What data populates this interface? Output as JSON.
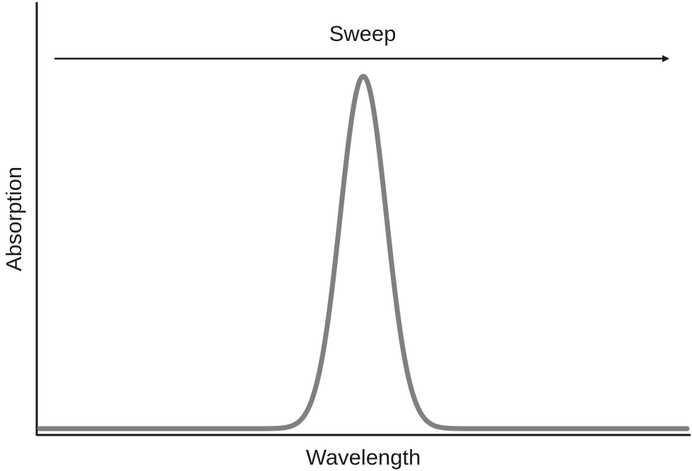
{
  "chart_data": {
    "type": "line",
    "title": "",
    "xlabel": "Wavelength",
    "ylabel": "Absorption",
    "annotation": "Sweep",
    "series_color": "#808080",
    "axis_color": "#1a1a1a",
    "grid": false,
    "legend": "none",
    "xlim": [
      0,
      1
    ],
    "ylim": [
      0,
      1
    ],
    "series": [
      {
        "peak_x": 0.5,
        "peak_y": 1.0,
        "width_sigma": 0.0355,
        "baseline_y": 0.0
      }
    ]
  }
}
